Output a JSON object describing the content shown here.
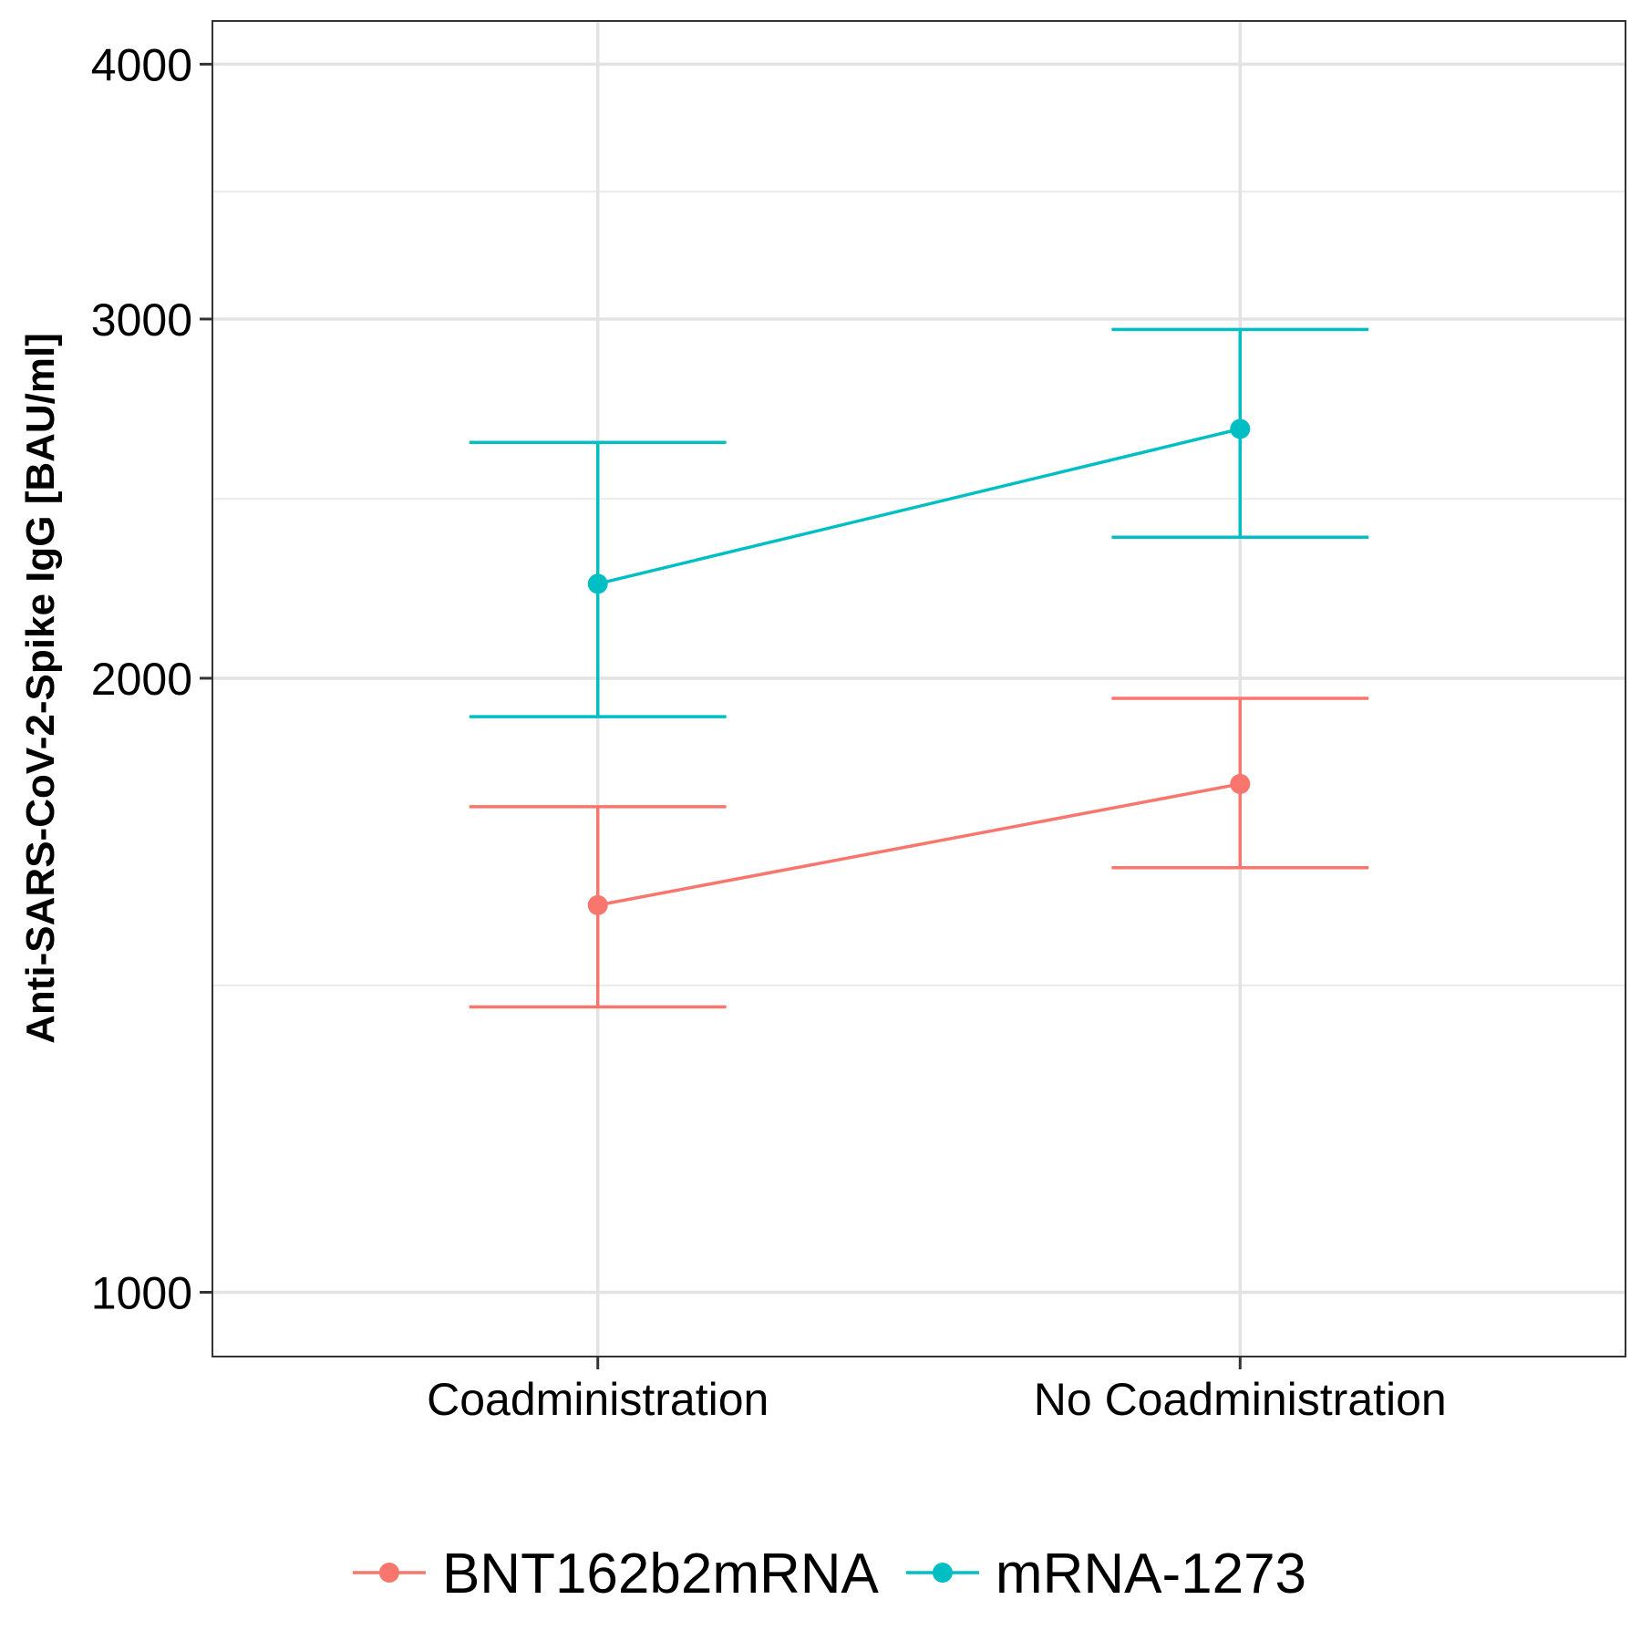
{
  "chart_data": {
    "type": "line",
    "title": "",
    "xlabel": "",
    "ylabel": "Anti-SARS-CoV-2-Spike IgG [BAU/ml]",
    "y_scale": "log10",
    "ylim": [
      930,
      4200
    ],
    "y_ticks": [
      1000,
      2000,
      3000,
      4000
    ],
    "y_tick_labels": [
      "1000",
      "2000",
      "3000",
      "4000"
    ],
    "y_minor_gridlines": [
      1414,
      2449,
      3464
    ],
    "categories": [
      "Coadministration",
      "No Coadministration"
    ],
    "grid": true,
    "legend_position": "bottom",
    "series": [
      {
        "name": "BNT162b2mRNA",
        "color": "#F8766D",
        "values": [
          1548,
          1775
        ],
        "lower": [
          1380,
          1615
        ],
        "upper": [
          1730,
          1955
        ]
      },
      {
        "name": "mRNA-1273",
        "color": "#00BFC4",
        "values": [
          2225,
          2650
        ],
        "lower": [
          1915,
          2345
        ],
        "upper": [
          2610,
          2965
        ]
      }
    ]
  }
}
